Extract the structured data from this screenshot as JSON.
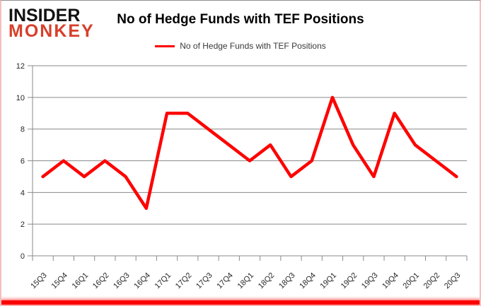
{
  "logo": {
    "line1": "INSIDER",
    "line2": "MONKEY",
    "line1_color": "#121212",
    "line2_color": "#d7402b"
  },
  "header": {
    "title": "No of Hedge Funds with TEF Positions"
  },
  "legend": {
    "label": "No of Hedge Funds with TEF Positions"
  },
  "chart_data": {
    "type": "line",
    "title": "No of Hedge Funds with TEF Positions",
    "categories": [
      "15Q3",
      "15Q4",
      "16Q1",
      "16Q2",
      "16Q3",
      "16Q4",
      "17Q1",
      "17Q2",
      "17Q3",
      "17Q4",
      "18Q1",
      "18Q2",
      "18Q3",
      "18Q4",
      "19Q1",
      "19Q2",
      "19Q3",
      "19Q4",
      "20Q1",
      "20Q2",
      "20Q3"
    ],
    "values": [
      5,
      6,
      5,
      6,
      5,
      3,
      9,
      9,
      8,
      7,
      6,
      7,
      5,
      6,
      10,
      7,
      5,
      9,
      7,
      6,
      5
    ],
    "series": [
      {
        "name": "No of Hedge Funds with TEF Positions",
        "values": [
          5,
          6,
          5,
          6,
          5,
          3,
          9,
          9,
          8,
          7,
          6,
          7,
          5,
          6,
          10,
          7,
          5,
          9,
          7,
          6,
          5
        ]
      }
    ],
    "xlabel": "",
    "ylabel": "",
    "ylim": [
      0,
      12
    ],
    "yticks": [
      0,
      2,
      4,
      6,
      8,
      10,
      12
    ],
    "ytick_step": 2,
    "grid": true,
    "legend_position": "top",
    "line_color": "#fe0000",
    "gridline_color": "#8a8a8a",
    "axis_text_color": "#262626"
  }
}
